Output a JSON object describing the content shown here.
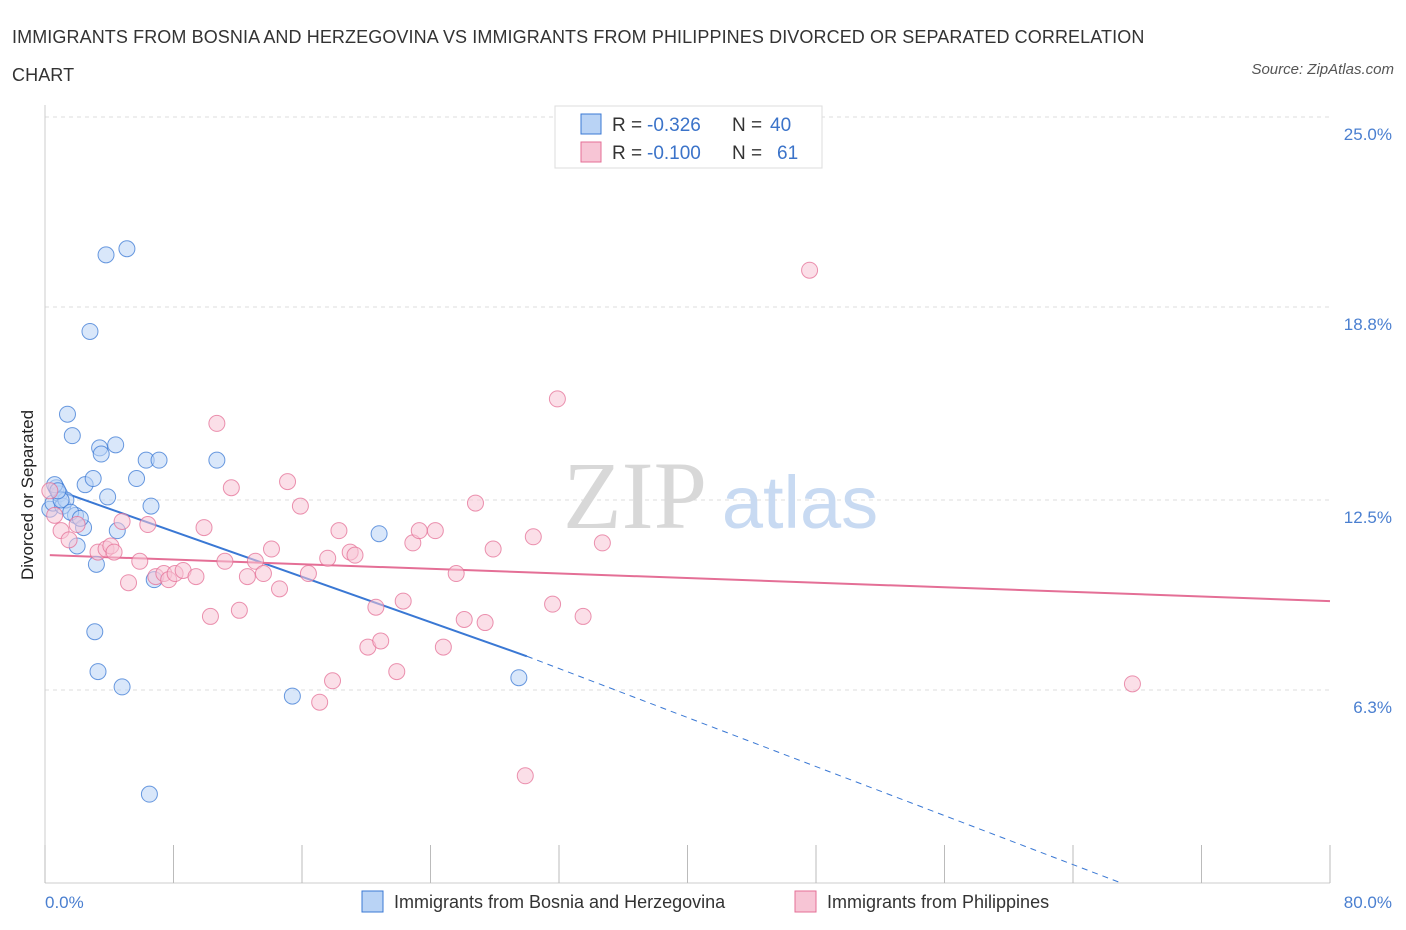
{
  "title": "IMMIGRANTS FROM BOSNIA AND HERZEGOVINA VS IMMIGRANTS FROM PHILIPPINES DIVORCED OR SEPARATED CORRELATION CHART",
  "source": "Source: ZipAtlas.com",
  "watermark": {
    "zip": "ZIP",
    "atlas": "atlas"
  },
  "legend": {
    "rows": [
      {
        "r_label": "R =",
        "r_value": "-0.326",
        "n_label": "N =",
        "n_value": "40"
      },
      {
        "r_label": "R =",
        "r_value": "-0.100",
        "n_label": "N =",
        "n_value": "61"
      }
    ]
  },
  "colors": {
    "blue": "#3a78d4",
    "blue_fill": "#b9d3f5",
    "pink": "#e46f96",
    "pink_fill": "#f7c5d5",
    "grid": "#dddddd",
    "tick_text": "#4a7fd0"
  },
  "chart_data": {
    "type": "scatter",
    "title": "IMMIGRANTS FROM BOSNIA AND HERZEGOVINA VS IMMIGRANTS FROM PHILIPPINES DIVORCED OR SEPARATED CORRELATION CHART",
    "xlabel": "",
    "ylabel": "Divorced or Separated",
    "xlim": [
      0,
      80
    ],
    "ylim": [
      0,
      25
    ],
    "x_tick_labels": [
      "0.0%",
      "80.0%"
    ],
    "y_ticks": [
      6.3,
      12.5,
      18.8,
      25.0
    ],
    "y_tick_labels": [
      "6.3%",
      "12.5%",
      "18.8%",
      "25.0%"
    ],
    "grid": true,
    "legend_position": "top-center",
    "series": [
      {
        "name": "Immigrants from Bosnia and Herzegovina",
        "color": "#3a78d4",
        "trend": {
          "x": [
            0.3,
            30
          ],
          "y": [
            12.9,
            7.4
          ],
          "extended_to": [
            67,
            0
          ]
        },
        "points": [
          [
            0.3,
            12.2
          ],
          [
            0.5,
            12.4
          ],
          [
            0.7,
            12.9
          ],
          [
            0.9,
            12.7
          ],
          [
            1.1,
            12.3
          ],
          [
            1.3,
            12.5
          ],
          [
            1.4,
            15.3
          ],
          [
            1.7,
            14.6
          ],
          [
            1.9,
            12.0
          ],
          [
            2.0,
            11.0
          ],
          [
            2.4,
            11.6
          ],
          [
            2.5,
            13.0
          ],
          [
            2.8,
            18.0
          ],
          [
            3.0,
            13.2
          ],
          [
            3.1,
            8.2
          ],
          [
            3.2,
            10.4
          ],
          [
            3.3,
            6.9
          ],
          [
            3.4,
            14.2
          ],
          [
            3.5,
            14.0
          ],
          [
            3.8,
            20.5
          ],
          [
            3.9,
            12.6
          ],
          [
            4.4,
            14.3
          ],
          [
            4.5,
            11.5
          ],
          [
            4.8,
            6.4
          ],
          [
            5.1,
            20.7
          ],
          [
            5.7,
            13.2
          ],
          [
            6.3,
            13.8
          ],
          [
            6.5,
            2.9
          ],
          [
            6.6,
            12.3
          ],
          [
            6.8,
            9.9
          ],
          [
            7.1,
            13.8
          ],
          [
            10.7,
            13.8
          ],
          [
            15.4,
            6.1
          ],
          [
            20.8,
            11.4
          ],
          [
            29.5,
            6.7
          ],
          [
            0.6,
            13.0
          ],
          [
            1.0,
            12.5
          ],
          [
            1.6,
            12.1
          ],
          [
            2.2,
            11.9
          ],
          [
            0.8,
            12.8
          ]
        ]
      },
      {
        "name": "Immigrants from Philippines",
        "color": "#e46f96",
        "trend": {
          "x": [
            0.3,
            80
          ],
          "y": [
            10.7,
            9.2
          ]
        },
        "points": [
          [
            0.3,
            12.8
          ],
          [
            0.6,
            12.0
          ],
          [
            1.0,
            11.5
          ],
          [
            1.5,
            11.2
          ],
          [
            2.0,
            11.7
          ],
          [
            3.3,
            10.8
          ],
          [
            3.8,
            10.9
          ],
          [
            4.1,
            11.0
          ],
          [
            4.8,
            11.8
          ],
          [
            5.2,
            9.8
          ],
          [
            5.9,
            10.5
          ],
          [
            6.4,
            11.7
          ],
          [
            6.9,
            10.0
          ],
          [
            7.4,
            10.1
          ],
          [
            7.7,
            9.9
          ],
          [
            8.1,
            10.1
          ],
          [
            8.6,
            10.2
          ],
          [
            9.4,
            10.0
          ],
          [
            9.9,
            11.6
          ],
          [
            10.3,
            8.7
          ],
          [
            10.7,
            15.0
          ],
          [
            11.2,
            10.5
          ],
          [
            11.6,
            12.9
          ],
          [
            12.1,
            8.9
          ],
          [
            12.6,
            10.0
          ],
          [
            13.1,
            10.5
          ],
          [
            13.6,
            10.1
          ],
          [
            14.1,
            10.9
          ],
          [
            14.6,
            9.6
          ],
          [
            15.1,
            13.1
          ],
          [
            15.9,
            12.3
          ],
          [
            16.4,
            10.1
          ],
          [
            17.1,
            5.9
          ],
          [
            17.6,
            10.6
          ],
          [
            17.9,
            6.6
          ],
          [
            18.3,
            11.5
          ],
          [
            19.0,
            10.8
          ],
          [
            19.3,
            10.7
          ],
          [
            20.1,
            7.7
          ],
          [
            20.6,
            9.0
          ],
          [
            20.9,
            7.9
          ],
          [
            21.9,
            6.9
          ],
          [
            22.3,
            9.2
          ],
          [
            22.9,
            11.1
          ],
          [
            23.3,
            11.5
          ],
          [
            24.3,
            11.5
          ],
          [
            24.8,
            7.7
          ],
          [
            25.6,
            10.1
          ],
          [
            26.1,
            8.6
          ],
          [
            26.8,
            12.4
          ],
          [
            27.4,
            8.5
          ],
          [
            27.9,
            10.9
          ],
          [
            29.9,
            3.5
          ],
          [
            30.4,
            11.3
          ],
          [
            31.6,
            9.1
          ],
          [
            31.9,
            15.8
          ],
          [
            33.5,
            8.7
          ],
          [
            34.7,
            11.1
          ],
          [
            47.6,
            20.0
          ],
          [
            67.7,
            6.5
          ],
          [
            4.3,
            10.8
          ]
        ]
      }
    ]
  },
  "bottom_legend": {
    "items": [
      {
        "label": "Immigrants from Bosnia and Herzegovina"
      },
      {
        "label": "Immigrants from Philippines"
      }
    ]
  }
}
